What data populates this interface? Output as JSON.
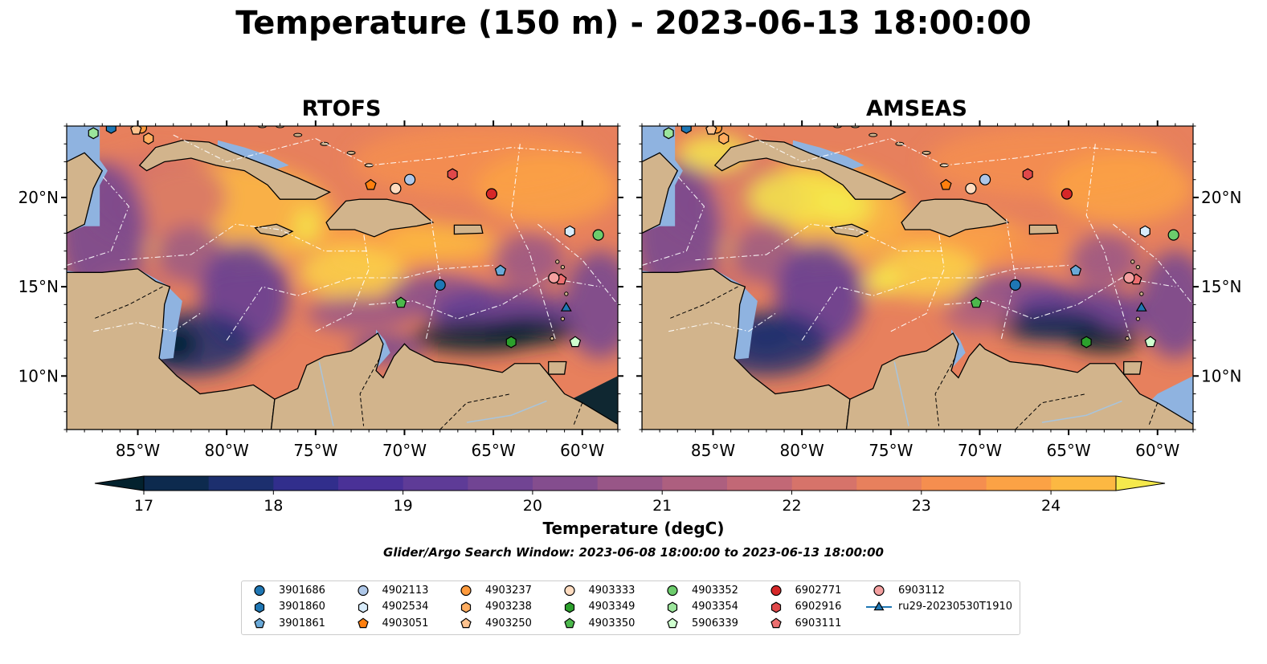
{
  "title": "Temperature (150 m) - 2023-06-13 18:00:00",
  "panels": [
    {
      "title": "RTOFS"
    },
    {
      "title": "AMSEAS"
    }
  ],
  "axes": {
    "lon_ticks": [
      "85°W",
      "80°W",
      "75°W",
      "70°W",
      "65°W",
      "60°W"
    ],
    "lat_ticks": [
      "20°N",
      "15°N",
      "10°N"
    ],
    "lon_values": [
      -85,
      -80,
      -75,
      -70,
      -65,
      -60
    ],
    "lat_values": [
      20,
      15,
      10
    ],
    "lon_range": [
      -89,
      -58
    ],
    "lat_range": [
      7,
      24
    ]
  },
  "colorbar": {
    "label": "Temperature (degC)",
    "tick_labels": [
      "17",
      "18",
      "19",
      "20",
      "21",
      "22",
      "23",
      "24"
    ],
    "tick_values": [
      17,
      18,
      19,
      20,
      21,
      22,
      23,
      24
    ],
    "range": [
      17,
      24.5
    ],
    "step": 0.5,
    "extend": "both",
    "colors": [
      "#03222e",
      "#0d2a4e",
      "#1c2f6e",
      "#312e8c",
      "#4a3197",
      "#5e3b97",
      "#714493",
      "#844d8e",
      "#985687",
      "#ad5f7f",
      "#c26876",
      "#d6736a",
      "#e7805d",
      "#f58e4f",
      "#fba245",
      "#fcb842",
      "#fcd249",
      "#f5e94c"
    ]
  },
  "search_window": "Glider/Argo Search Window: 2023-06-08 18:00:00 to 2023-06-13 18:00:00",
  "colors": {
    "land": "#d2b48c",
    "ocean_fill": "#8fb3e0"
  },
  "legend": [
    {
      "label": "3901686",
      "marker": "circle",
      "color": "#1f77b4"
    },
    {
      "label": "3901860",
      "marker": "hexagon",
      "color": "#1f77b4"
    },
    {
      "label": "3901861",
      "marker": "pentagon",
      "color": "#6aa9d8"
    },
    {
      "label": "4902113",
      "marker": "circle",
      "color": "#aec7e8"
    },
    {
      "label": "4902534",
      "marker": "hexagon",
      "color": "#d8ecfb"
    },
    {
      "label": "4903051",
      "marker": "pentagon",
      "color": "#ff7f0e"
    },
    {
      "label": "4903237",
      "marker": "circle",
      "color": "#ff9a3c"
    },
    {
      "label": "4903238",
      "marker": "hexagon",
      "color": "#ffad60"
    },
    {
      "label": "4903250",
      "marker": "pentagon",
      "color": "#ffc38f"
    },
    {
      "label": "4903333",
      "marker": "circle",
      "color": "#ffdcc0"
    },
    {
      "label": "4903349",
      "marker": "hexagon",
      "color": "#2ca02c"
    },
    {
      "label": "4903350",
      "marker": "pentagon",
      "color": "#4cb84c"
    },
    {
      "label": "4903352",
      "marker": "circle",
      "color": "#6ccc6c"
    },
    {
      "label": "4903354",
      "marker": "hexagon",
      "color": "#9be59b"
    },
    {
      "label": "5906339",
      "marker": "pentagon",
      "color": "#cfffcf"
    },
    {
      "label": "6902771",
      "marker": "circle",
      "color": "#d62728"
    },
    {
      "label": "6902916",
      "marker": "hexagon",
      "color": "#e0484a"
    },
    {
      "label": "6903111",
      "marker": "pentagon",
      "color": "#ec6f70"
    },
    {
      "label": "6903112",
      "marker": "circle",
      "color": "#f4a0a0"
    },
    {
      "label": "ru29-20230530T1910",
      "marker": "triangle",
      "color": "#1f77b4"
    }
  ],
  "platform_positions": [
    {
      "label": "3901686",
      "lon": -68.0,
      "lat": 15.1
    },
    {
      "label": "3901860",
      "lon": -86.5,
      "lat": 23.9
    },
    {
      "label": "3901861",
      "lon": -64.6,
      "lat": 15.9
    },
    {
      "label": "4902113",
      "lon": -69.7,
      "lat": 21.0
    },
    {
      "label": "4902534",
      "lon": -60.7,
      "lat": 18.1
    },
    {
      "label": "4903051",
      "lon": -71.9,
      "lat": 20.7
    },
    {
      "label": "4903237",
      "lon": -84.8,
      "lat": 23.9
    },
    {
      "label": "4903238",
      "lon": -84.4,
      "lat": 23.3
    },
    {
      "label": "4903250",
      "lon": -85.1,
      "lat": 23.8
    },
    {
      "label": "4903333",
      "lon": -70.5,
      "lat": 20.5
    },
    {
      "label": "4903349",
      "lon": -64.0,
      "lat": 11.9
    },
    {
      "label": "4903350",
      "lon": -70.2,
      "lat": 14.1
    },
    {
      "label": "4903352",
      "lon": -59.1,
      "lat": 17.9
    },
    {
      "label": "4903354",
      "lon": -87.5,
      "lat": 23.6
    },
    {
      "label": "5906339",
      "lon": -60.4,
      "lat": 11.9
    },
    {
      "label": "6902771",
      "lon": -65.1,
      "lat": 20.2
    },
    {
      "label": "6902916",
      "lon": -67.3,
      "lat": 21.3
    },
    {
      "label": "6903111",
      "lon": -61.2,
      "lat": 15.4
    },
    {
      "label": "6903112",
      "lon": -61.6,
      "lat": 15.5
    },
    {
      "label": "ru29-20230530T1910",
      "lon": -60.9,
      "lat": 13.8
    }
  ]
}
